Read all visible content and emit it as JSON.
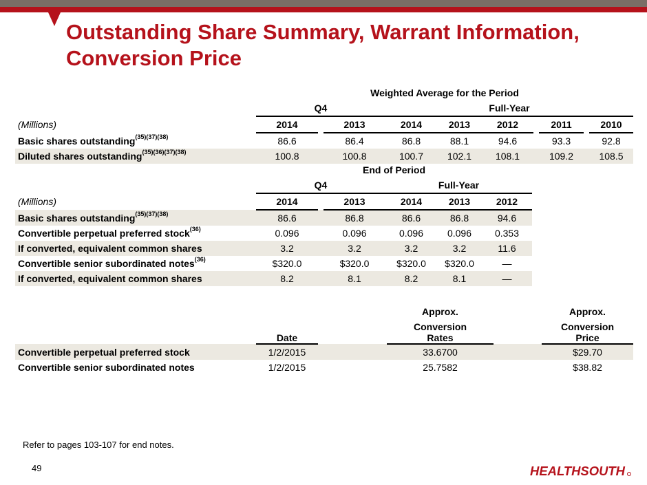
{
  "title": "Outstanding Share Summary, Warrant Information, Conversion Price",
  "weighted": {
    "section_title": "Weighted Average for the Period",
    "q4_label": "Q4",
    "fullyear_label": "Full-Year",
    "units_label": "(Millions)",
    "years": [
      "2014",
      "2013",
      "2014",
      "2013",
      "2012",
      "2011",
      "2010"
    ],
    "rows": [
      {
        "label": "Basic shares outstanding",
        "sup": "(35)(37)(38)",
        "values": [
          "86.6",
          "86.4",
          "86.8",
          "88.1",
          "94.6",
          "93.3",
          "92.8"
        ]
      },
      {
        "label": "Diluted shares outstanding",
        "sup": "(35)(36)(37)(38)",
        "values": [
          "100.8",
          "100.8",
          "100.7",
          "102.1",
          "108.1",
          "109.2",
          "108.5"
        ]
      }
    ]
  },
  "end_period": {
    "section_title": "End of Period",
    "q4_label": "Q4",
    "fullyear_label": "Full-Year",
    "units_label": "(Millions)",
    "years": [
      "2014",
      "2013",
      "2014",
      "2013",
      "2012"
    ],
    "rows": [
      {
        "label": "Basic shares outstanding",
        "sup": "(35)(37)(38)",
        "values": [
          "86.6",
          "86.8",
          "86.6",
          "86.8",
          "94.6"
        ]
      },
      {
        "label": "Convertible perpetual preferred stock",
        "sup": "(36)",
        "values": [
          "0.096",
          "0.096",
          "0.096",
          "0.096",
          "0.353"
        ]
      },
      {
        "label": "If converted, equivalent common shares",
        "sup": "",
        "values": [
          "3.2",
          "3.2",
          "3.2",
          "3.2",
          "11.6"
        ]
      },
      {
        "label": "Convertible senior subordinated notes",
        "sup": "(36)",
        "values": [
          "$320.0",
          "$320.0",
          "$320.0",
          "$320.0",
          "—"
        ]
      },
      {
        "label": "If converted, equivalent common shares",
        "sup": "",
        "values": [
          "8.2",
          "8.1",
          "8.2",
          "8.1",
          "—"
        ]
      }
    ]
  },
  "conversion": {
    "approx_label": "Approx.",
    "date_header": "Date",
    "rates_header_1": "Conversion",
    "rates_header_2": "Rates",
    "price_header_1": "Conversion",
    "price_header_2": "Price",
    "rows": [
      {
        "label": "Convertible perpetual preferred stock",
        "date": "1/2/2015",
        "rate": "33.6700",
        "price": "$29.70"
      },
      {
        "label": "Convertible senior subordinated notes",
        "date": "1/2/2015",
        "rate": "25.7582",
        "price": "$38.82"
      }
    ]
  },
  "footnote": "Refer to pages 103-107 for end notes.",
  "page_number": "49",
  "logo_text": "HEALTHSOUTH",
  "colors": {
    "brand_red": "#b5121b",
    "bar_gray": "#7a6e66",
    "row_shade": "#ece9e1"
  }
}
